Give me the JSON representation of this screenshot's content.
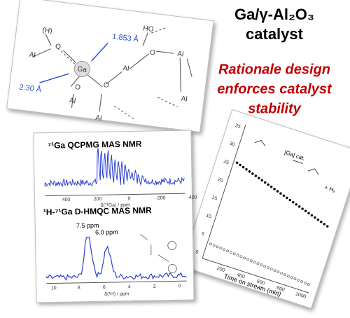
{
  "title": {
    "line1": "Ga/γ-Al₂O₃",
    "line2": "catalyst"
  },
  "tagline": [
    "Rationale design",
    "enforces catalyst",
    "stability"
  ],
  "structure": {
    "atoms": [
      "(H)",
      "Al",
      "O",
      "Ga",
      "O",
      "Al",
      "O",
      "Al",
      "Al",
      "O",
      "HO",
      "Al",
      "Al"
    ],
    "distances": [
      "1.853 Å",
      "2.30 Å"
    ]
  },
  "nmr": {
    "top_title": "⁷¹Ga QCPMG MAS NMR",
    "top_ticks": [
      "400",
      "200",
      "0",
      "-200",
      "-400"
    ],
    "top_axis": "δ(⁷¹Ga) / ppm",
    "bottom_title": "¹H-⁷¹Ga D-HMQC MAS NMR",
    "peaks": [
      "7.5 ppm",
      "6.0 ppm"
    ],
    "bottom_ticks": [
      "10",
      "8",
      "6",
      "4",
      "2",
      "0"
    ],
    "bottom_axis": "δ(¹H) / ppm"
  },
  "reaction": {
    "yticks": [
      "35",
      "30",
      "25",
      "20",
      "15",
      "10",
      "5",
      "0"
    ],
    "xticks": [
      "200",
      "400",
      "600",
      "800",
      "1000"
    ],
    "xlabel": "Time on stream (min)",
    "catalyst": "[Ga] cat.",
    "byproduct": "+ H₂"
  }
}
